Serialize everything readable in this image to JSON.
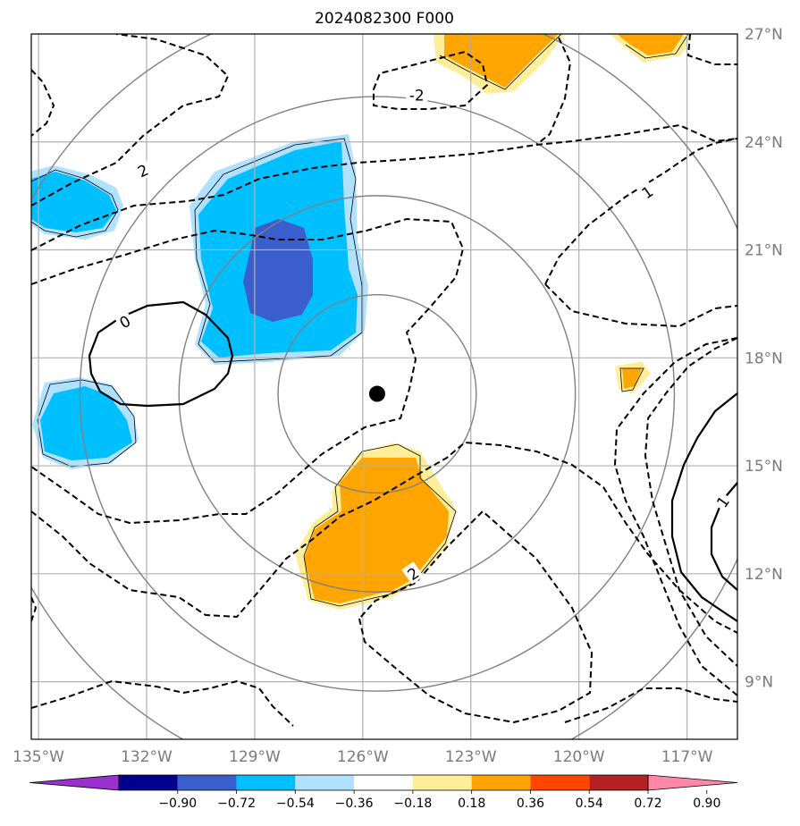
{
  "title": "2024082300 F000",
  "map": {
    "lon_range": [
      -135.2,
      -115.6
    ],
    "lat_range": [
      7.4,
      27.0
    ],
    "lon_ticks": [
      {
        "lon": -135,
        "label": "135°W"
      },
      {
        "lon": -132,
        "label": "132°W"
      },
      {
        "lon": -129,
        "label": "129°W"
      },
      {
        "lon": -126,
        "label": "126°W"
      },
      {
        "lon": -123,
        "label": "123°W"
      },
      {
        "lon": -120,
        "label": "120°W"
      },
      {
        "lon": -117,
        "label": "117°W"
      }
    ],
    "lat_ticks": [
      {
        "lat": 27,
        "label": "27°N"
      },
      {
        "lat": 24,
        "label": "24°N"
      },
      {
        "lat": 21,
        "label": "21°N"
      },
      {
        "lat": 18,
        "label": "18°N"
      },
      {
        "lat": 15,
        "label": "15°N"
      },
      {
        "lat": 12,
        "label": "12°N"
      },
      {
        "lat": 9,
        "label": "9°N"
      }
    ],
    "gridlines": true,
    "center": {
      "lon": -125.6,
      "lat": 17.0
    },
    "range_rings_deg": [
      2.75,
      5.5,
      8.25,
      11.0
    ],
    "contour_labels": [
      {
        "text": "2",
        "lon": -132.1,
        "lat": 23.2,
        "rot": -25
      },
      {
        "text": "-2",
        "lon": -124.5,
        "lat": 25.3,
        "rot": 0
      },
      {
        "text": "0",
        "lon": -132.6,
        "lat": 19.0,
        "rot": -30
      },
      {
        "text": "1",
        "lon": -118.1,
        "lat": 22.6,
        "rot": -35
      },
      {
        "text": "2",
        "lon": -124.6,
        "lat": 12.0,
        "rot": -35
      },
      {
        "text": "1",
        "lon": -116.0,
        "lat": 14.0,
        "rot": -55
      }
    ]
  },
  "colorbar": {
    "colors": [
      "#9932cc",
      "#00008b",
      "#3a5fcd",
      "#00bfff",
      "#b0e2ff",
      "#ffffff",
      "#ffee99",
      "#ffa500",
      "#ff4500",
      "#b22222",
      "#ff88aa"
    ],
    "labels": [
      "−0.90",
      "−0.72",
      "−0.54",
      "−0.36",
      "−0.18",
      "0.18",
      "0.36",
      "0.54",
      "0.72",
      "0.90"
    ],
    "extend": "both"
  }
}
